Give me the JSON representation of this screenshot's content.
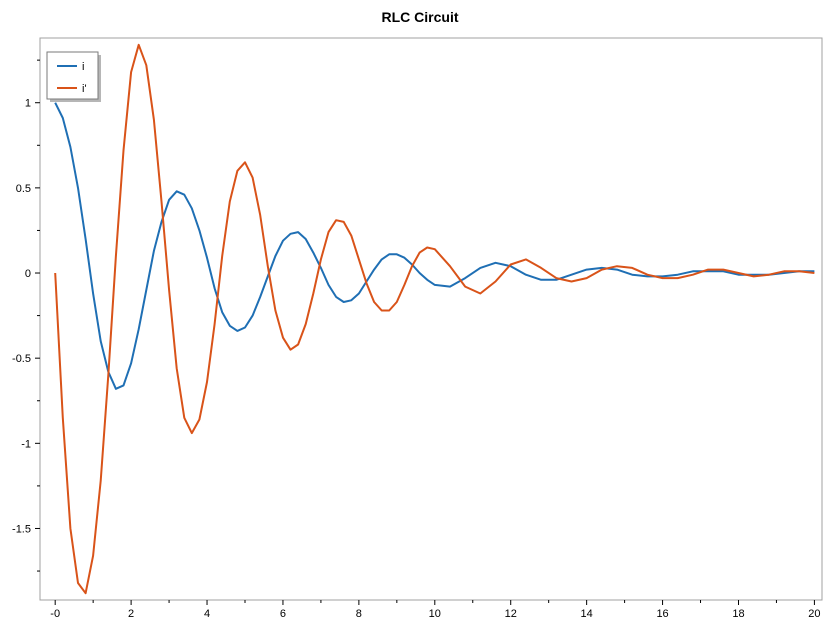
{
  "chart_data": {
    "type": "line",
    "title": "RLC Circuit",
    "xlabel": "",
    "ylabel": "",
    "xlim": [
      -0.4,
      20.2
    ],
    "ylim": [
      -1.92,
      1.38
    ],
    "x_ticks": [
      0,
      2,
      4,
      6,
      8,
      10,
      12,
      14,
      16,
      18,
      20
    ],
    "x_tick_labels": [
      "-0",
      "2",
      "4",
      "6",
      "8",
      "10",
      "12",
      "14",
      "16",
      "18",
      "20"
    ],
    "y_ticks": [
      1,
      0.5,
      0,
      -0.5,
      -1,
      -1.5
    ],
    "y_tick_labels": [
      "1",
      "0.5",
      "0",
      "-0.5",
      "-1",
      "-1.5"
    ],
    "grid": false,
    "legend_position": "top-left",
    "series": [
      {
        "name": "i",
        "color": "#1f6fb4",
        "x": [
          0,
          0.2,
          0.4,
          0.6,
          0.8,
          1.0,
          1.2,
          1.4,
          1.6,
          1.8,
          2.0,
          2.2,
          2.4,
          2.6,
          2.8,
          3.0,
          3.2,
          3.4,
          3.6,
          3.8,
          4.0,
          4.2,
          4.4,
          4.6,
          4.8,
          5.0,
          5.2,
          5.4,
          5.6,
          5.8,
          6.0,
          6.2,
          6.4,
          6.6,
          6.8,
          7.0,
          7.2,
          7.4,
          7.6,
          7.8,
          8.0,
          8.2,
          8.4,
          8.6,
          8.8,
          9.0,
          9.2,
          9.4,
          9.6,
          9.8,
          10.0,
          10.4,
          10.8,
          11.2,
          11.6,
          12.0,
          12.4,
          12.8,
          13.2,
          13.6,
          14.0,
          14.4,
          14.8,
          15.2,
          15.6,
          16.0,
          16.4,
          16.8,
          17.2,
          17.6,
          18.0,
          18.4,
          18.8,
          19.2,
          19.6,
          20.0
        ],
        "y": [
          1.0,
          0.91,
          0.74,
          0.5,
          0.2,
          -0.12,
          -0.4,
          -0.58,
          -0.68,
          -0.66,
          -0.53,
          -0.33,
          -0.1,
          0.13,
          0.3,
          0.43,
          0.48,
          0.46,
          0.38,
          0.25,
          0.09,
          -0.09,
          -0.23,
          -0.31,
          -0.34,
          -0.32,
          -0.25,
          -0.14,
          -0.02,
          0.1,
          0.19,
          0.23,
          0.24,
          0.2,
          0.12,
          0.03,
          -0.07,
          -0.14,
          -0.17,
          -0.16,
          -0.12,
          -0.05,
          0.02,
          0.08,
          0.11,
          0.11,
          0.09,
          0.05,
          0.0,
          -0.04,
          -0.07,
          -0.08,
          -0.03,
          0.03,
          0.06,
          0.04,
          -0.01,
          -0.04,
          -0.04,
          -0.01,
          0.02,
          0.03,
          0.02,
          -0.01,
          -0.02,
          -0.02,
          -0.01,
          0.01,
          0.01,
          0.01,
          -0.01,
          -0.01,
          -0.01,
          0.0,
          0.01,
          0.01
        ]
      },
      {
        "name": "i'",
        "color": "#d95319",
        "x": [
          0,
          0.2,
          0.4,
          0.6,
          0.8,
          1.0,
          1.2,
          1.4,
          1.6,
          1.8,
          2.0,
          2.2,
          2.4,
          2.6,
          2.8,
          3.0,
          3.2,
          3.4,
          3.6,
          3.8,
          4.0,
          4.2,
          4.4,
          4.6,
          4.8,
          5.0,
          5.2,
          5.4,
          5.6,
          5.8,
          6.0,
          6.2,
          6.4,
          6.6,
          6.8,
          7.0,
          7.2,
          7.4,
          7.6,
          7.8,
          8.0,
          8.2,
          8.4,
          8.6,
          8.8,
          9.0,
          9.2,
          9.4,
          9.6,
          9.8,
          10.0,
          10.4,
          10.8,
          11.2,
          11.6,
          12.0,
          12.4,
          12.8,
          13.2,
          13.6,
          14.0,
          14.4,
          14.8,
          15.2,
          15.6,
          16.0,
          16.4,
          16.8,
          17.2,
          17.6,
          18.0,
          18.4,
          18.8,
          19.2,
          19.6,
          20.0
        ],
        "y": [
          0.0,
          -0.85,
          -1.5,
          -1.82,
          -1.88,
          -1.66,
          -1.22,
          -0.6,
          0.1,
          0.72,
          1.18,
          1.34,
          1.22,
          0.9,
          0.42,
          -0.1,
          -0.56,
          -0.85,
          -0.94,
          -0.86,
          -0.64,
          -0.3,
          0.1,
          0.42,
          0.6,
          0.65,
          0.56,
          0.34,
          0.04,
          -0.22,
          -0.38,
          -0.45,
          -0.42,
          -0.3,
          -0.12,
          0.08,
          0.24,
          0.31,
          0.3,
          0.22,
          0.08,
          -0.06,
          -0.17,
          -0.22,
          -0.22,
          -0.17,
          -0.07,
          0.04,
          0.12,
          0.15,
          0.14,
          0.04,
          -0.08,
          -0.12,
          -0.05,
          0.05,
          0.08,
          0.03,
          -0.03,
          -0.05,
          -0.03,
          0.02,
          0.04,
          0.03,
          -0.01,
          -0.03,
          -0.03,
          -0.01,
          0.02,
          0.02,
          0.0,
          -0.02,
          -0.01,
          0.01,
          0.01,
          0.0
        ]
      }
    ]
  }
}
